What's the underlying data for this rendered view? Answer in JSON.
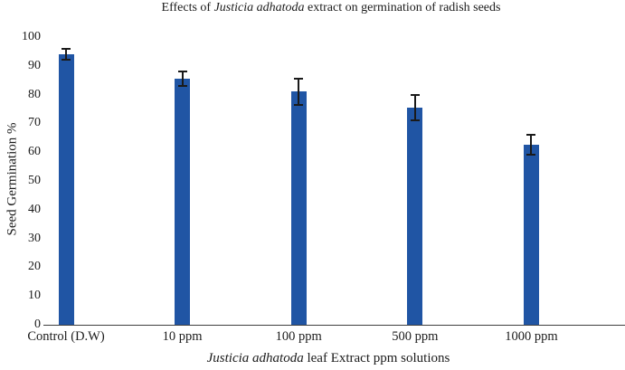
{
  "title": {
    "prefix": "Effects of ",
    "italic": "Justicia adhatoda",
    "suffix": " extract on germination of radish seeds"
  },
  "x_axis_title": {
    "italic": "Justicia adhatoda",
    "rest": " leaf Extract ppm solutions"
  },
  "y_axis_title": "Seed Germination %",
  "chart_data": {
    "type": "bar",
    "title": "Effects of Justicia adhatoda extract on germination of radish seeds",
    "xlabel": "Justicia adhatoda leaf Extract ppm solutions",
    "ylabel": "Seed Germination %",
    "categories": [
      "Control (D.W)",
      "10 ppm",
      "100 ppm",
      "500 ppm",
      "1000 ppm"
    ],
    "values": [
      94,
      85.5,
      81,
      75.5,
      62.5
    ],
    "error_bars": [
      2,
      2.5,
      4.5,
      4.5,
      3.5
    ],
    "ylim": [
      0,
      100
    ],
    "ytick_step": 10,
    "bar_color": "#2055A4",
    "error_bar_color": "#1a1a1a",
    "axis_line_color": "#3f3f3f",
    "grid": false,
    "legend_position": "none"
  }
}
